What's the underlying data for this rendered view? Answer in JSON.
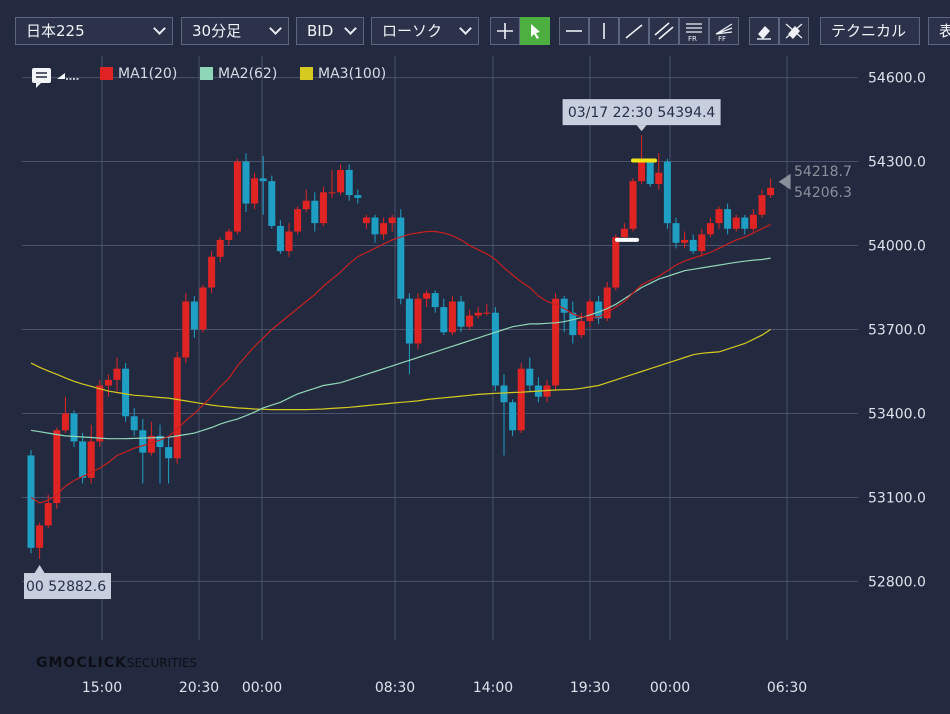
{
  "toolbar": {
    "symbol": "日本225",
    "timeframe": "30分足",
    "price_type": "BID",
    "chart_type": "ローソク",
    "technical_label": "テクニカル",
    "display_label": "表"
  },
  "legend": [
    {
      "label": "MA1(20)",
      "color": "#e02424"
    },
    {
      "label": "MA2(62)",
      "color": "#8fd6b8"
    },
    {
      "label": "MA3(100)",
      "color": "#d6c91f"
    }
  ],
  "logo": {
    "brand": "GMOCLICK",
    "suffix": "SECURITIES"
  },
  "chart_data": {
    "type": "candlestick",
    "ylim": [
      52680,
      54720
    ],
    "y_ticks": [
      "54600.0",
      "54300.0",
      "54000.0",
      "53700.0",
      "53400.0",
      "53100.0",
      "52800.0"
    ],
    "x_ticks": [
      "15:00",
      "20:30",
      "00:00",
      "08:30",
      "14:00",
      "19:30",
      "00:00",
      "06:30"
    ],
    "up_color": "#e02424",
    "down_color": "#1f9fc4",
    "candles": [
      [
        53250,
        52920,
        53270,
        52900
      ],
      [
        52920,
        53000,
        53010,
        52880
      ],
      [
        53000,
        53080,
        53110,
        52990
      ],
      [
        53080,
        53340,
        53350,
        53060
      ],
      [
        53340,
        53400,
        53460,
        53330
      ],
      [
        53400,
        53300,
        53410,
        53280
      ],
      [
        53300,
        53170,
        53330,
        53150
      ],
      [
        53170,
        53300,
        53360,
        53150
      ],
      [
        53300,
        53500,
        53520,
        53280
      ],
      [
        53500,
        53520,
        53540,
        53460
      ],
      [
        53520,
        53560,
        53600,
        53480
      ],
      [
        53560,
        53390,
        53580,
        53370
      ],
      [
        53390,
        53340,
        53420,
        53320
      ],
      [
        53340,
        53260,
        53380,
        53150
      ],
      [
        53260,
        53320,
        53370,
        53250
      ],
      [
        53320,
        53280,
        53360,
        53150
      ],
      [
        53280,
        53240,
        53320,
        53150
      ],
      [
        53240,
        53600,
        53620,
        53220
      ],
      [
        53600,
        53800,
        53830,
        53580
      ],
      [
        53800,
        53700,
        53820,
        53670
      ],
      [
        53700,
        53850,
        53860,
        53690
      ],
      [
        53850,
        53960,
        53980,
        53830
      ],
      [
        53960,
        54020,
        54030,
        53940
      ],
      [
        54020,
        54050,
        54060,
        54000
      ],
      [
        54050,
        54300,
        54310,
        54040
      ],
      [
        54300,
        54150,
        54330,
        54120
      ],
      [
        54150,
        54240,
        54260,
        54130
      ],
      [
        54240,
        54230,
        54320,
        54110
      ],
      [
        54230,
        54070,
        54250,
        54060
      ],
      [
        54070,
        53980,
        54090,
        53970
      ],
      [
        53980,
        54050,
        54080,
        53960
      ],
      [
        54050,
        54130,
        54140,
        54040
      ],
      [
        54130,
        54160,
        54200,
        54120
      ],
      [
        54160,
        54080,
        54190,
        54050
      ],
      [
        54080,
        54190,
        54210,
        54070
      ],
      [
        54190,
        54190,
        54270,
        54170
      ],
      [
        54190,
        54270,
        54290,
        54180
      ],
      [
        54270,
        54180,
        54290,
        54160
      ],
      [
        54180,
        54170,
        54200,
        54150
      ],
      [
        54080,
        54100,
        54110,
        54060
      ],
      [
        54100,
        54040,
        54110,
        54010
      ],
      [
        54040,
        54080,
        54100,
        54020
      ],
      [
        54080,
        54100,
        54110,
        54050
      ],
      [
        54100,
        53810,
        54130,
        53790
      ],
      [
        53810,
        53650,
        53830,
        53540
      ],
      [
        53650,
        53810,
        53830,
        53630
      ],
      [
        53810,
        53830,
        53840,
        53780
      ],
      [
        53830,
        53780,
        53840,
        53760
      ],
      [
        53780,
        53690,
        53810,
        53680
      ],
      [
        53690,
        53800,
        53820,
        53680
      ],
      [
        53800,
        53710,
        53820,
        53690
      ],
      [
        53710,
        53750,
        53770,
        53700
      ],
      [
        53750,
        53760,
        53780,
        53740
      ],
      [
        53760,
        53760,
        53790,
        53750
      ],
      [
        53760,
        53500,
        53780,
        53480
      ],
      [
        53500,
        53440,
        53540,
        53250
      ],
      [
        53440,
        53340,
        53450,
        53320
      ],
      [
        53340,
        53560,
        53580,
        53330
      ],
      [
        53560,
        53500,
        53600,
        53480
      ],
      [
        53500,
        53460,
        53530,
        53440
      ],
      [
        53460,
        53500,
        53520,
        53440
      ],
      [
        53500,
        53810,
        53830,
        53480
      ],
      [
        53810,
        53760,
        53820,
        53690
      ],
      [
        53760,
        53680,
        53800,
        53650
      ],
      [
        53680,
        53730,
        53760,
        53670
      ],
      [
        53730,
        53800,
        53810,
        53710
      ],
      [
        53800,
        53740,
        53820,
        53720
      ],
      [
        53740,
        53850,
        53870,
        53730
      ],
      [
        53850,
        54030,
        54040,
        53840
      ],
      [
        54030,
        54060,
        54080,
        54020
      ],
      [
        54060,
        54230,
        54240,
        54050
      ],
      [
        54230,
        54300,
        54394.4,
        54220
      ],
      [
        54300,
        54220,
        54310,
        54210
      ],
      [
        54220,
        54260,
        54330,
        54200
      ],
      [
        54300,
        54080,
        54310,
        54060
      ],
      [
        54080,
        54010,
        54100,
        53990
      ],
      [
        54010,
        54020,
        54050,
        53990
      ],
      [
        54020,
        53980,
        54040,
        53970
      ],
      [
        53980,
        54040,
        54060,
        53960
      ],
      [
        54040,
        54080,
        54100,
        54030
      ],
      [
        54080,
        54130,
        54140,
        54060
      ],
      [
        54130,
        54060,
        54150,
        54040
      ],
      [
        54060,
        54100,
        54110,
        54050
      ],
      [
        54100,
        54060,
        54110,
        54040
      ],
      [
        54060,
        54110,
        54130,
        54050
      ],
      [
        54110,
        54180,
        54200,
        54100
      ],
      [
        54180,
        54206.3,
        54240,
        54170
      ]
    ],
    "ma1": [
      53100,
      53080,
      53090,
      53110,
      53140,
      53160,
      53175,
      53190,
      53205,
      53225,
      53250,
      53262,
      53276,
      53285,
      53295,
      53305,
      53318,
      53345,
      53375,
      53400,
      53430,
      53460,
      53495,
      53525,
      53570,
      53605,
      53640,
      53670,
      53700,
      53725,
      53750,
      53775,
      53800,
      53825,
      53855,
      53880,
      53905,
      53935,
      53960,
      53975,
      53990,
      54005,
      54020,
      54030,
      54040,
      54045,
      54050,
      54050,
      54045,
      54035,
      54020,
      54000,
      53985,
      53970,
      53950,
      53920,
      53895,
      53870,
      53850,
      53820,
      53800,
      53790,
      53775,
      53755,
      53745,
      53745,
      53745,
      53760,
      53780,
      53800,
      53830,
      53860,
      53875,
      53890,
      53910,
      53930,
      53945,
      53955,
      53965,
      53975,
      53990,
      54005,
      54020,
      54030,
      54045,
      54060,
      54075
    ],
    "ma2": [
      53340,
      53335,
      53330,
      53325,
      53320,
      53318,
      53316,
      53314,
      53312,
      53310,
      53310,
      53310,
      53311,
      53312,
      53313,
      53314,
      53315,
      53320,
      53325,
      53330,
      53340,
      53350,
      53362,
      53372,
      53380,
      53392,
      53405,
      53420,
      53430,
      53440,
      53455,
      53470,
      53480,
      53490,
      53500,
      53505,
      53510,
      53520,
      53530,
      53540,
      53550,
      53560,
      53570,
      53580,
      53590,
      53600,
      53610,
      53620,
      53630,
      53640,
      53650,
      53660,
      53670,
      53680,
      53690,
      53700,
      53710,
      53715,
      53720,
      53720,
      53722,
      53724,
      53728,
      53735,
      53742,
      53752,
      53762,
      53775,
      53790,
      53810,
      53830,
      53850,
      53865,
      53880,
      53890,
      53900,
      53910,
      53915,
      53920,
      53925,
      53930,
      53935,
      53940,
      53944,
      53948,
      53950,
      53955
    ],
    "ma3": [
      53580,
      53565,
      53552,
      53540,
      53527,
      53515,
      53505,
      53497,
      53488,
      53480,
      53475,
      53470,
      53465,
      53463,
      53460,
      53457,
      53455,
      53450,
      53445,
      53440,
      53435,
      53430,
      53426,
      53423,
      53420,
      53418,
      53416,
      53415,
      53414,
      53414,
      53414,
      53414,
      53414,
      53415,
      53416,
      53418,
      53420,
      53422,
      53425,
      53428,
      53431,
      53434,
      53437,
      53440,
      53442,
      53445,
      53450,
      53453,
      53456,
      53459,
      53462,
      53465,
      53468,
      53470,
      53472,
      53473,
      53475,
      53476,
      53478,
      53480,
      53482,
      53484,
      53485,
      53486,
      53490,
      53495,
      53500,
      53510,
      53520,
      53530,
      53540,
      53550,
      53560,
      53570,
      53580,
      53590,
      53600,
      53610,
      53615,
      53618,
      53620,
      53630,
      53640,
      53650,
      53665,
      53680,
      53700
    ],
    "annotations": {
      "high_label": "03/17 22:30 54394.4",
      "low_label": "00 52882.6",
      "right_labels": [
        "54218.7",
        "54206.3"
      ]
    }
  }
}
